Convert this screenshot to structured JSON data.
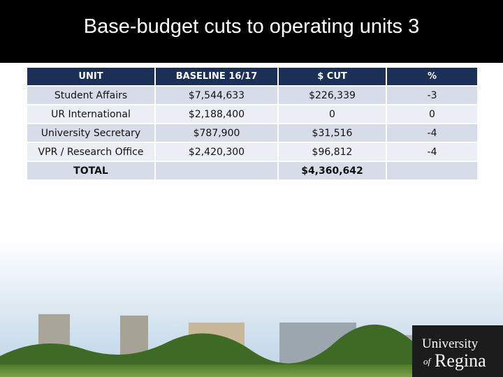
{
  "header": {
    "title": "Base-budget cuts to operating units 3"
  },
  "table": {
    "columns": [
      "UNIT",
      "BASELINE 16/17",
      "$ CUT",
      "%"
    ],
    "rows": [
      [
        "Student Affairs",
        "$7,544,633",
        "$226,339",
        "-3"
      ],
      [
        "UR International",
        "$2,188,400",
        "0",
        "0"
      ],
      [
        "University Secretary",
        "$787,900",
        "$31,516",
        "-4"
      ],
      [
        "VPR / Research Office",
        "$2,420,300",
        "$96,812",
        "-4"
      ],
      [
        "TOTAL",
        null,
        "$4,360,642",
        null
      ]
    ]
  },
  "logo": {
    "line1": "University",
    "of": "of",
    "name": "Regina"
  }
}
